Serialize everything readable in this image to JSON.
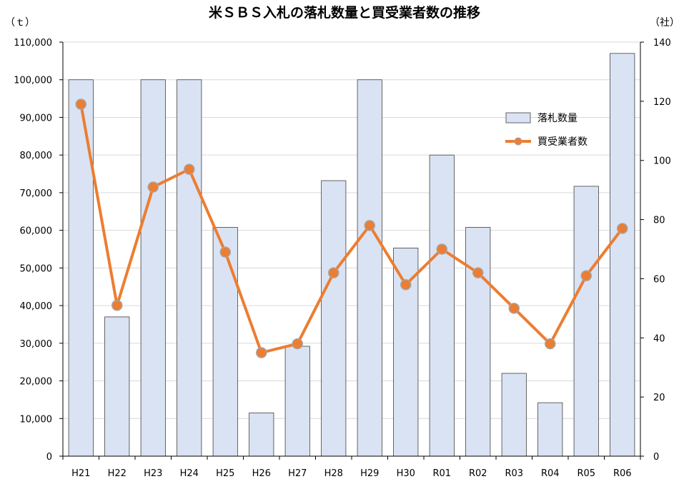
{
  "chart_data": {
    "type": "bar+line",
    "title": "米ＳＢＳ入札の落札数量と買受業者数の推移",
    "categories": [
      "H21",
      "H22",
      "H23",
      "H24",
      "H25",
      "H26",
      "H27",
      "H28",
      "H29",
      "H30",
      "R01",
      "R02",
      "R03",
      "R04",
      "R05",
      "R06"
    ],
    "left_axis": {
      "unit": "（ｔ）",
      "ylim": [
        0,
        110000
      ],
      "ticks": [
        0,
        10000,
        20000,
        30000,
        40000,
        50000,
        60000,
        70000,
        80000,
        90000,
        100000,
        110000
      ],
      "tick_labels": [
        "0",
        "10,000",
        "20,000",
        "30,000",
        "40,000",
        "50,000",
        "60,000",
        "70,000",
        "80,000",
        "90,000",
        "100,000",
        "110,000"
      ]
    },
    "right_axis": {
      "unit": "（社）",
      "ylim": [
        0,
        140
      ],
      "ticks": [
        0,
        20,
        40,
        60,
        80,
        100,
        120,
        140
      ],
      "tick_labels": [
        "0",
        "20",
        "40",
        "60",
        "80",
        "100",
        "120",
        "140"
      ]
    },
    "series": [
      {
        "name": "落札数量",
        "type": "bar",
        "axis": "left",
        "color": "#dae3f3",
        "edge_color": "#404040",
        "values": [
          100000,
          37000,
          100000,
          100000,
          60800,
          11500,
          29200,
          73200,
          100000,
          55300,
          80000,
          60800,
          22000,
          14200,
          71700,
          107000
        ]
      },
      {
        "name": "買受業者数",
        "type": "line",
        "axis": "right",
        "color": "#ed7d31",
        "marker_edge": "#a5a5a5",
        "values": [
          119,
          51,
          91,
          97,
          69,
          35,
          38,
          62,
          78,
          58,
          70,
          62,
          50,
          38,
          61,
          77
        ]
      }
    ],
    "grid": "horizontal",
    "legend": "top-right"
  }
}
